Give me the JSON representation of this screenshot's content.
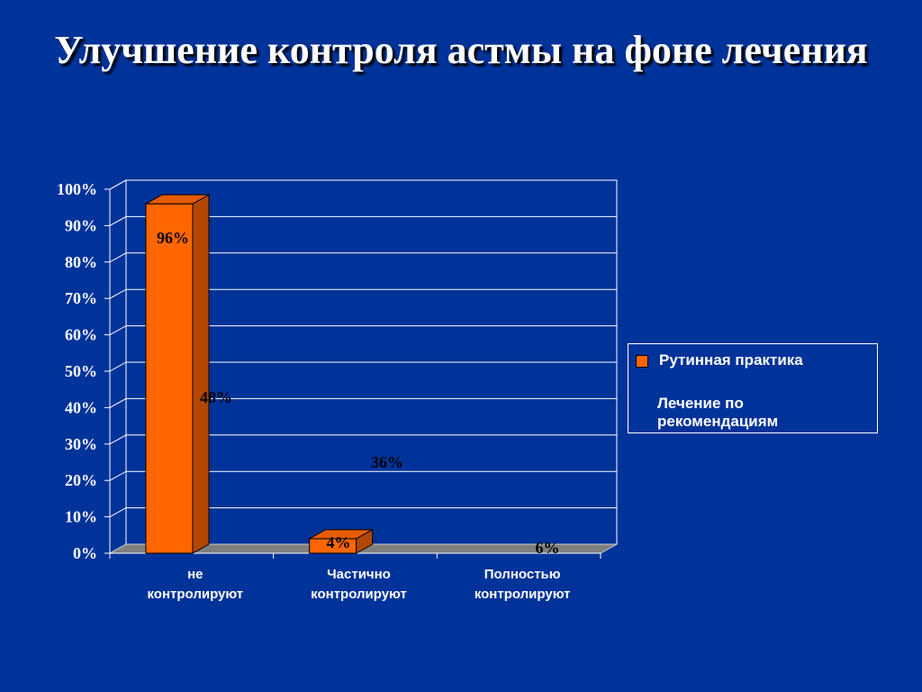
{
  "slide": {
    "title": "Улучшение контроля астмы на фоне лечения"
  },
  "colors": {
    "background": "#003399",
    "series_routine": "#ff6600",
    "series_routine_side": "#b34700",
    "series_routine_top": "#e65c00",
    "floor": "#7f7f7f",
    "grid": "#ffffff"
  },
  "chart_data": {
    "type": "bar",
    "title": "",
    "xlabel": "",
    "ylabel": "",
    "ylim": [
      0,
      100
    ],
    "y_ticks": [
      "0%",
      "10%",
      "20%",
      "30%",
      "40%",
      "50%",
      "60%",
      "70%",
      "80%",
      "90%",
      "100%"
    ],
    "categories": [
      "не контролируют",
      "Частично контролируют",
      "Полностью контролируют"
    ],
    "category_lines": [
      [
        "не",
        "контролируют"
      ],
      [
        "Частично",
        "контролируют"
      ],
      [
        "Полностью",
        "контролируют"
      ]
    ],
    "series": [
      {
        "name": "Рутинная практика",
        "values": [
          96,
          4,
          0
        ],
        "labels": [
          "96%",
          "4%",
          ""
        ]
      },
      {
        "name": "Лечение по рекомендациям",
        "values": [
          48,
          36,
          6
        ],
        "labels": [
          "48%",
          "36%",
          "6%"
        ]
      }
    ],
    "grid": true,
    "legend": "right"
  },
  "legend": {
    "items": [
      {
        "label": "Рутинная практика"
      },
      {
        "label": "Лечение по рекомендациям"
      }
    ]
  }
}
